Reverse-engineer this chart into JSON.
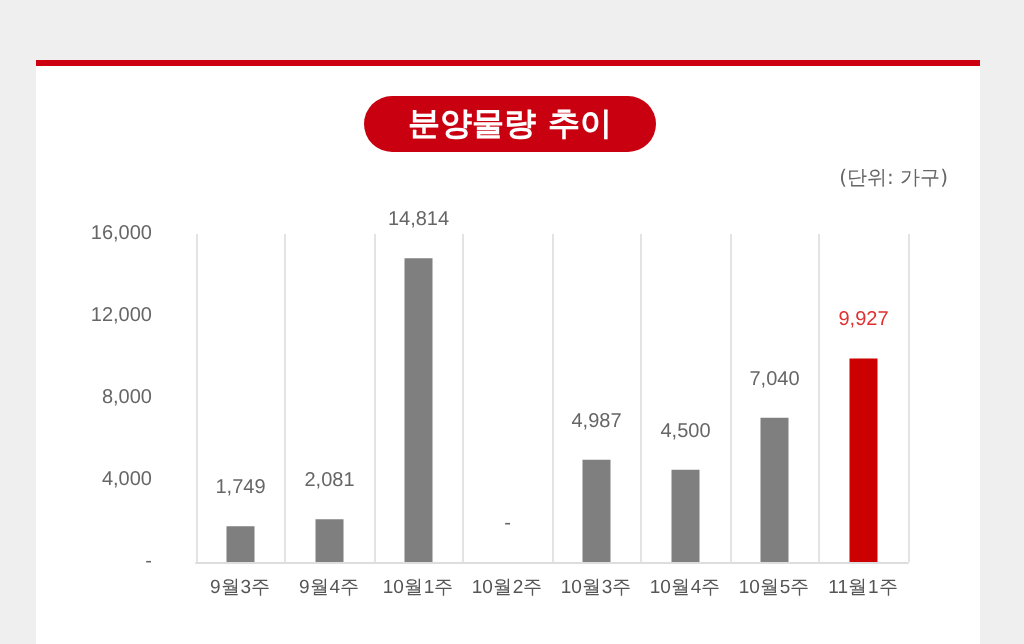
{
  "chart_data": {
    "type": "bar",
    "title": "분양물량 추이",
    "annotations": [
      "(단위: 가구)"
    ],
    "categories": [
      "9월3주",
      "9월4주",
      "10월1주",
      "10월2주",
      "10월3주",
      "10월4주",
      "10월5주",
      "11월1주"
    ],
    "values": [
      1749,
      2081,
      14814,
      0,
      4987,
      4500,
      7040,
      9927
    ],
    "colors": [
      "#7f7f7f",
      "#7f7f7f",
      "#7f7f7f",
      "#7f7f7f",
      "#7f7f7f",
      "#7f7f7f",
      "#7f7f7f",
      "#cc0000"
    ],
    "value_labels": [
      "1,749",
      "2,081",
      "14,814",
      "-",
      "4,987",
      "4,500",
      "7,040",
      "9,927"
    ],
    "ylim": [
      0,
      16000
    ],
    "yticks": [
      {
        "value": 0,
        "label": "-"
      },
      {
        "value": 4000,
        "label": "4,000"
      },
      {
        "value": 8000,
        "label": "8,000"
      },
      {
        "value": 12000,
        "label": "12,000"
      },
      {
        "value": 16000,
        "label": "16,000"
      }
    ],
    "grid": "x"
  }
}
